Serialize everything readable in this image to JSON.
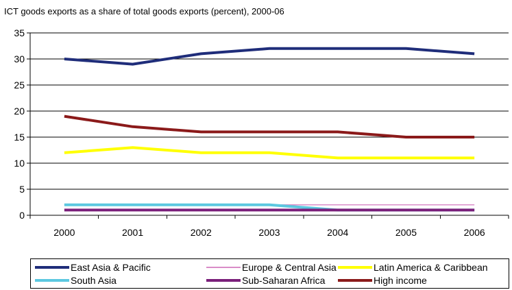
{
  "chart_data": {
    "type": "line",
    "title": "ICT goods exports as a share of total goods exports (percent), 2000-06",
    "xlabel": "",
    "ylabel": "",
    "categories": [
      "2000",
      "2001",
      "2002",
      "2003",
      "2004",
      "2005",
      "2006"
    ],
    "ylim": [
      0,
      35
    ],
    "yticks": [
      "0",
      "5",
      "10",
      "15",
      "20",
      "25",
      "30",
      "35"
    ],
    "grid": true,
    "legend_position": "bottom",
    "series": [
      {
        "name": "East Asia & Pacific",
        "color": "#1f2d7a",
        "values": [
          30,
          29,
          31,
          32,
          32,
          32,
          31
        ]
      },
      {
        "name": "Europe & Central Asia",
        "color": "#d98cc8",
        "values": [
          2,
          2,
          2,
          2,
          2,
          2,
          2
        ]
      },
      {
        "name": "Latin America & Caribbean",
        "color": "#ffff00",
        "values": [
          12,
          13,
          12,
          12,
          11,
          11,
          11
        ]
      },
      {
        "name": "South Asia",
        "color": "#5cc8e0",
        "values": [
          2,
          2,
          2,
          2,
          1,
          1,
          1
        ]
      },
      {
        "name": "Sub-Saharan Africa",
        "color": "#7a1f7a",
        "values": [
          1,
          1,
          1,
          1,
          1,
          1,
          1
        ]
      },
      {
        "name": "High income",
        "color": "#8b1a1a",
        "values": [
          19,
          17,
          16,
          16,
          16,
          15,
          15
        ]
      }
    ]
  }
}
